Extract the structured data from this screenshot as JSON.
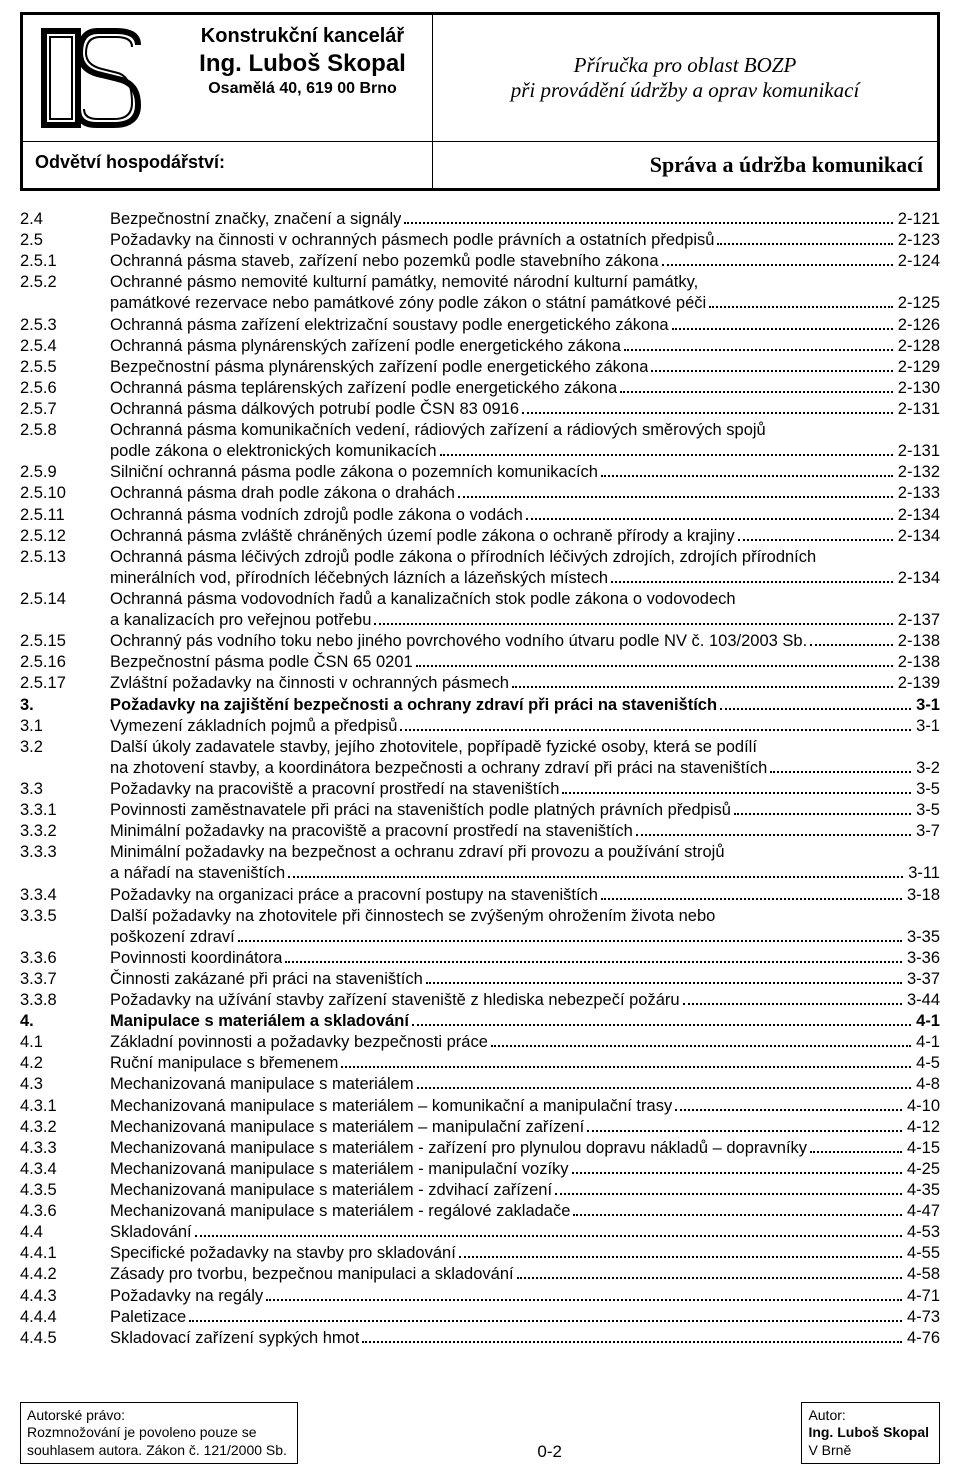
{
  "header": {
    "company_line1": "Konstrukční kancelář",
    "company_line2": "Ing. Luboš Skopal",
    "company_line3": "Osamělá 40,  619 00 Brno",
    "manual_line1": "Příručka pro oblast BOZP",
    "manual_line2": "při provádění údržby a oprav komunikací",
    "sector_label": "Odvětví hospodářství:",
    "sector_value": "Správa a údržba komunikací"
  },
  "toc": [
    {
      "num": "2.4",
      "title": "Bezpečnostní značky, značení a signály",
      "page": "2-121"
    },
    {
      "num": "2.5",
      "title": "Požadavky na činnosti v ochranných pásmech podle právních a ostatních předpisů",
      "page": "2-123"
    },
    {
      "num": "2.5.1",
      "title": "Ochranná pásma staveb, zařízení nebo pozemků podle stavebního zákona",
      "page": "2-124"
    },
    {
      "num": "2.5.2",
      "title": "Ochranné pásmo nemovité kulturní památky, nemovité národní kulturní památky,",
      "wrap": true
    },
    {
      "cont": true,
      "title": "památkové rezervace nebo památkové zóny podle zákon o státní památkové péči",
      "page": "2-125"
    },
    {
      "num": "2.5.3",
      "title": "Ochranná pásma zařízení elektrizační soustavy podle energetického zákona",
      "page": "2-126"
    },
    {
      "num": "2.5.4",
      "title": "Ochranná pásma plynárenských zařízení podle energetického zákona",
      "page": "2-128"
    },
    {
      "num": "2.5.5",
      "title": "Bezpečnostní pásma plynárenských zařízení podle energetického zákona",
      "page": "2-129"
    },
    {
      "num": "2.5.6",
      "title": "Ochranná pásma teplárenských zařízení podle energetického zákona",
      "page": "2-130"
    },
    {
      "num": "2.5.7",
      "title": "Ochranná pásma dálkových potrubí podle ČSN 83 0916",
      "page": "2-131"
    },
    {
      "num": "2.5.8",
      "title": "Ochranná pásma komunikačních vedení, rádiových zařízení a rádiových směrových spojů",
      "wrap": true
    },
    {
      "cont": true,
      "title": "podle zákona o elektronických komunikacích",
      "page": "2-131"
    },
    {
      "num": "2.5.9",
      "title": "Silniční ochranná pásma podle zákona o pozemních komunikacích",
      "page": "2-132"
    },
    {
      "num": "2.5.10",
      "title": "Ochranná pásma drah podle zákona o drahách",
      "page": "2-133"
    },
    {
      "num": "2.5.11",
      "title": "Ochranná pásma vodních zdrojů podle zákona o vodách",
      "page": "2-134"
    },
    {
      "num": "2.5.12",
      "title": "Ochranná pásma zvláště chráněných území podle zákona o ochraně přírody a krajiny",
      "page": "2-134"
    },
    {
      "num": "2.5.13",
      "title": "Ochranná pásma léčivých zdrojů podle zákona o přírodních léčivých zdrojích, zdrojích přírodních",
      "wrap": true
    },
    {
      "cont": true,
      "title": "minerálních vod, přírodních léčebných lázních a lázeňských místech",
      "page": "2-134"
    },
    {
      "num": "2.5.14",
      "title": "Ochranná pásma vodovodních řadů a kanalizačních stok podle zákona o vodovodech",
      "wrap": true
    },
    {
      "cont": true,
      "title": "a kanalizacích pro veřejnou potřebu",
      "page": "2-137"
    },
    {
      "num": "2.5.15",
      "title": "Ochranný pás vodního toku nebo jiného povrchového vodního útvaru podle NV č. 103/2003 Sb.",
      "page": "2-138"
    },
    {
      "num": "2.5.16",
      "title": "Bezpečnostní pásma podle ČSN 65 0201",
      "page": "2-138"
    },
    {
      "num": "2.5.17",
      "title": "Zvláštní požadavky na činnosti v ochranných pásmech",
      "page": "2-139"
    },
    {
      "num": "3.",
      "title": "Požadavky na zajištění bezpečnosti a ochrany zdraví při práci na staveništích",
      "page": "3-1",
      "bold": true
    },
    {
      "num": "3.1",
      "title": "Vymezení základních pojmů a předpisů",
      "page": "3-1"
    },
    {
      "num": "3.2",
      "title": "Další úkoly zadavatele stavby, jejího zhotovitele, popřípadě fyzické osoby, která se podílí",
      "wrap": true
    },
    {
      "cont": true,
      "title": "na zhotovení stavby, a koordinátora bezpečnosti a ochrany zdraví při práci na staveništích",
      "page": "3-2"
    },
    {
      "num": "3.3",
      "title": "Požadavky na pracoviště a pracovní prostředí na staveništích",
      "page": "3-5"
    },
    {
      "num": "3.3.1",
      "title": "Povinnosti zaměstnavatele při práci na staveništích podle platných právních předpisů",
      "page": "3-5"
    },
    {
      "num": "3.3.2",
      "title": "Minimální požadavky na pracoviště a pracovní prostředí na staveništích",
      "page": "3-7"
    },
    {
      "num": "3.3.3",
      "title": "Minimální požadavky na bezpečnost a ochranu zdraví při provozu a používání strojů",
      "wrap": true
    },
    {
      "cont": true,
      "title": "a nářadí na staveništích",
      "page": "3-11"
    },
    {
      "num": "3.3.4",
      "title": "Požadavky na organizaci práce a pracovní postupy na staveništích",
      "page": "3-18"
    },
    {
      "num": "3.3.5",
      "title": "Další požadavky na zhotovitele při činnostech se zvýšeným ohrožením života nebo",
      "wrap": true
    },
    {
      "cont": true,
      "title": "poškození zdraví",
      "page": "3-35"
    },
    {
      "num": "3.3.6",
      "title": "Povinnosti koordinátora",
      "page": "3-36"
    },
    {
      "num": "3.3.7",
      "title": "Činnosti zakázané při práci na staveništích",
      "page": "3-37"
    },
    {
      "num": "3.3.8",
      "title": "Požadavky na užívání stavby zařízení staveniště z hlediska nebezpečí požáru",
      "page": "3-44"
    },
    {
      "num": "4.",
      "title": "Manipulace s materiálem a skladování",
      "page": "4-1",
      "bold": true
    },
    {
      "num": "4.1",
      "title": "Základní povinnosti a požadavky bezpečnosti práce",
      "page": "4-1"
    },
    {
      "num": "4.2",
      "title": "Ruční manipulace s břemenem",
      "page": "4-5"
    },
    {
      "num": "4.3",
      "title": "Mechanizovaná manipulace s materiálem",
      "page": "4-8"
    },
    {
      "num": "4.3.1",
      "title": "Mechanizovaná manipulace s materiálem – komunikační a manipulační trasy",
      "page": "4-10"
    },
    {
      "num": "4.3.2",
      "title": "Mechanizovaná manipulace s materiálem – manipulační zařízení",
      "page": "4-12"
    },
    {
      "num": "4.3.3",
      "title": "Mechanizovaná manipulace s materiálem - zařízení pro plynulou dopravu nákladů – dopravníky",
      "page": "4-15"
    },
    {
      "num": "4.3.4",
      "title": "Mechanizovaná manipulace s materiálem - manipulační vozíky",
      "page": "4-25"
    },
    {
      "num": "4.3.5",
      "title": "Mechanizovaná manipulace s materiálem - zdvihací zařízení",
      "page": "4-35"
    },
    {
      "num": "4.3.6",
      "title": "Mechanizovaná manipulace s materiálem - regálové zakladače",
      "page": "4-47"
    },
    {
      "num": "4.4",
      "title": "Skladování",
      "page": "4-53"
    },
    {
      "num": "4.4.1",
      "title": "Specifické požadavky na stavby pro skladování",
      "page": "4-55"
    },
    {
      "num": "4.4.2",
      "title": "Zásady pro tvorbu, bezpečnou manipulaci a skladování",
      "page": "4-58"
    },
    {
      "num": "4.4.3",
      "title": "Požadavky na regály",
      "page": "4-71"
    },
    {
      "num": "4.4.4",
      "title": "Paletizace",
      "page": "4-73"
    },
    {
      "num": "4.4.5",
      "title": "Skladovací zařízení sypkých hmot",
      "page": "4-76"
    }
  ],
  "footer": {
    "left_line1": "Autorské právo:",
    "left_line2": "Rozmnožování je povoleno pouze se",
    "left_line3": "souhlasem autora. Zákon č. 121/2000 Sb.",
    "center": "0-2",
    "right_line1": "Autor:",
    "right_line2": "Ing. Luboš Skopal",
    "right_line3": "V Brně"
  }
}
